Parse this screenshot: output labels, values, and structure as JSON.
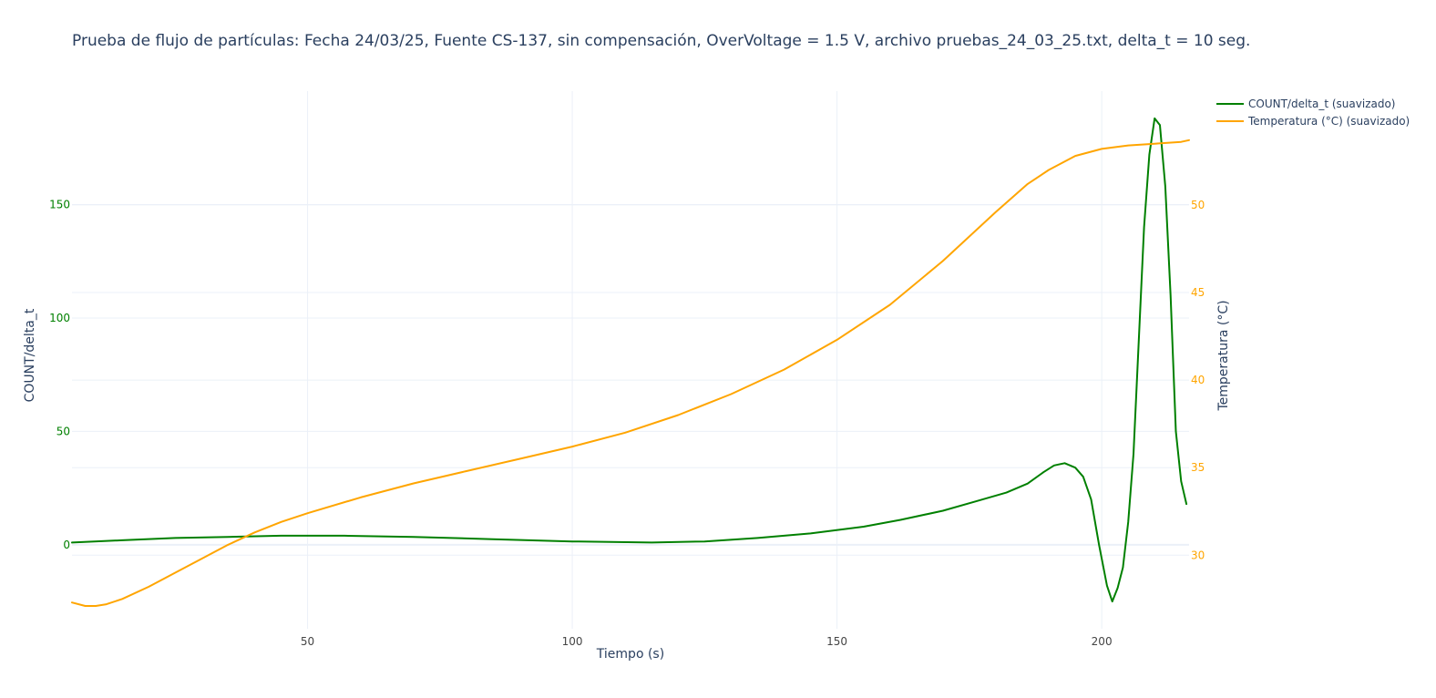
{
  "chart_data": {
    "type": "line",
    "title": "Prueba de flujo de partículas: Fecha 24/03/25, Fuente CS-137, sin compensación, OverVoltage = 1.5 V, archivo pruebas_24_03_25.txt, delta_t = 10 seg.",
    "xlabel": "Tiempo (s)",
    "ylabel": "COUNT/delta_t",
    "y2label": "Temperatura (°C)",
    "xlim": [
      5.5,
      216.5
    ],
    "ylim": [
      -37,
      200
    ],
    "y2lim": [
      25.8,
      56.5
    ],
    "x_ticks": [
      50,
      100,
      150,
      200
    ],
    "y_ticks": [
      0,
      50,
      100,
      150
    ],
    "y2_ticks": [
      30,
      35,
      40,
      45,
      50
    ],
    "grid": true,
    "legend_position": "top-right",
    "colors": {
      "count": "#008000",
      "temperature": "#FFA500",
      "text": "#2a3f5f",
      "tick": "#444444",
      "grid": "#EBF0F8"
    },
    "series": [
      {
        "name": "COUNT/delta_t (suavizado)",
        "axis": "y",
        "color": "#008000",
        "x": [
          5.5,
          15,
          25,
          35,
          45,
          57,
          70,
          85,
          100,
          115,
          125,
          135,
          145,
          155,
          162,
          170,
          176,
          182,
          186,
          189,
          191,
          193,
          195,
          196.5,
          198,
          199.5,
          201,
          202,
          203,
          204,
          205,
          206,
          207,
          208,
          209,
          210,
          211,
          212,
          213,
          214,
          215,
          216
        ],
        "values": [
          1,
          2,
          3,
          3.5,
          4,
          4,
          3.5,
          2.5,
          1.5,
          1,
          1.5,
          3,
          5,
          8,
          11,
          15,
          19,
          23,
          27,
          32,
          35,
          36,
          34,
          30,
          20,
          0,
          -18,
          -25,
          -19,
          -10,
          10,
          40,
          90,
          140,
          172,
          188,
          185,
          158,
          110,
          50,
          28,
          18
        ]
      },
      {
        "name": "Temperatura (°C) (suavizado)",
        "axis": "y2",
        "color": "#FFA500",
        "x": [
          5.5,
          8,
          10,
          12,
          15,
          20,
          25,
          30,
          35,
          40,
          45,
          50,
          60,
          70,
          80,
          90,
          100,
          110,
          120,
          130,
          140,
          150,
          160,
          170,
          180,
          186,
          190,
          195,
          200,
          205,
          210,
          215,
          216.5
        ],
        "values": [
          27.3,
          27.1,
          27.1,
          27.2,
          27.5,
          28.2,
          29.0,
          29.8,
          30.6,
          31.3,
          31.9,
          32.4,
          33.3,
          34.1,
          34.8,
          35.5,
          36.2,
          37.0,
          38.0,
          39.2,
          40.6,
          42.3,
          44.3,
          46.8,
          49.6,
          51.2,
          52.0,
          52.8,
          53.2,
          53.4,
          53.5,
          53.6,
          53.7
        ]
      }
    ]
  }
}
